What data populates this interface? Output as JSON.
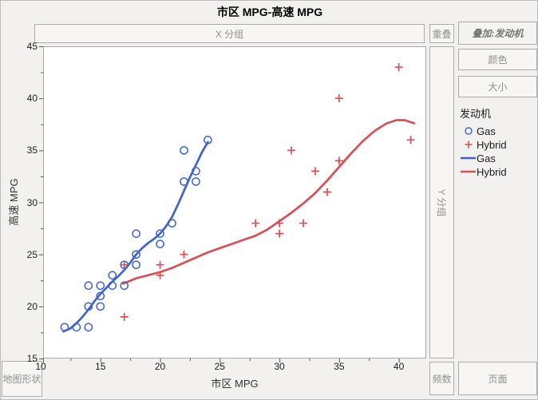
{
  "window": {
    "title": "市区 MPG-高速 MPG"
  },
  "drop_zones": {
    "x_group": "X 分组",
    "overlap": "重叠",
    "overlay": "叠加:发动机",
    "color": "颜色",
    "size": "大小",
    "y_group": "Y 分组",
    "map_shape": "地图形状",
    "freq": "频数",
    "page": "页面"
  },
  "legend": {
    "title": "发动机",
    "items": [
      {
        "label": "Gas",
        "marker": "circle",
        "color": "#3e63cf"
      },
      {
        "label": "Hybrid",
        "marker": "plus",
        "color": "#d94f56"
      },
      {
        "label": "Gas",
        "marker": "line",
        "color": "#3e63cf"
      },
      {
        "label": "Hybrid",
        "marker": "line",
        "color": "#d94f56"
      }
    ]
  },
  "colors": {
    "gas": "#3e63cf",
    "hybrid": "#d94f56",
    "plot_border": "#a8a8a8",
    "plot_bg": "#ffffff",
    "tick": "#555555"
  },
  "chart_data": {
    "type": "scatter",
    "title": "市区 MPG-高速 MPG",
    "xlabel": "市区 MPG",
    "ylabel": "高速 MPG",
    "xlim": [
      10.2,
      42.3
    ],
    "ylim": [
      15,
      45
    ],
    "x_ticks": [
      10,
      15,
      20,
      25,
      30,
      35,
      40
    ],
    "y_ticks": [
      15,
      20,
      25,
      30,
      35,
      40,
      45
    ],
    "minor_tick_step": 2.5,
    "grid": false,
    "legend_position": "right",
    "series": [
      {
        "name": "Gas",
        "marker": "circle",
        "color": "#3e63cf",
        "points": [
          [
            12,
            18
          ],
          [
            13,
            18
          ],
          [
            14,
            18
          ],
          [
            14,
            20
          ],
          [
            15,
            20
          ],
          [
            15,
            21
          ],
          [
            14,
            22
          ],
          [
            15,
            22
          ],
          [
            16,
            22
          ],
          [
            17,
            22
          ],
          [
            16,
            23
          ],
          [
            17,
            24
          ],
          [
            18,
            24
          ],
          [
            18,
            25
          ],
          [
            18,
            27
          ],
          [
            20,
            26
          ],
          [
            20,
            27
          ],
          [
            21,
            28
          ],
          [
            22,
            32
          ],
          [
            23,
            32
          ],
          [
            23,
            33
          ],
          [
            22,
            35
          ],
          [
            24,
            36
          ]
        ]
      },
      {
        "name": "Hybrid",
        "marker": "plus",
        "color": "#d94f56",
        "points": [
          [
            17,
            19
          ],
          [
            17,
            24
          ],
          [
            20,
            23
          ],
          [
            20,
            24
          ],
          [
            22,
            25
          ],
          [
            28,
            28
          ],
          [
            30,
            27
          ],
          [
            30,
            28
          ],
          [
            32,
            28
          ],
          [
            31,
            35
          ],
          [
            33,
            33
          ],
          [
            34,
            31
          ],
          [
            35,
            34
          ],
          [
            35,
            40
          ],
          [
            40,
            43
          ],
          [
            41,
            36
          ]
        ]
      }
    ],
    "smoothers": [
      {
        "name": "Gas",
        "color": "#3e63cf",
        "path": [
          [
            11.9,
            17.6
          ],
          [
            12.5,
            17.9
          ],
          [
            13,
            18.4
          ],
          [
            13.5,
            19.0
          ],
          [
            14,
            19.7
          ],
          [
            14.5,
            20.5
          ],
          [
            15,
            21.2
          ],
          [
            15.5,
            21.8
          ],
          [
            16,
            22.4
          ],
          [
            16.5,
            22.9
          ],
          [
            17,
            23.5
          ],
          [
            17.5,
            24.2
          ],
          [
            18,
            25.0
          ],
          [
            18.5,
            25.6
          ],
          [
            19,
            26.1
          ],
          [
            19.5,
            26.5
          ],
          [
            20,
            27.0
          ],
          [
            20.5,
            27.7
          ],
          [
            21,
            28.6
          ],
          [
            21.5,
            29.8
          ],
          [
            22,
            31.1
          ],
          [
            22.5,
            32.4
          ],
          [
            23,
            33.6
          ],
          [
            23.5,
            34.8
          ],
          [
            24,
            35.8
          ]
        ]
      },
      {
        "name": "Hybrid",
        "color": "#d94f56",
        "path": [
          [
            16.9,
            22.2
          ],
          [
            18,
            22.7
          ],
          [
            19,
            23.0
          ],
          [
            20,
            23.3
          ],
          [
            21,
            23.7
          ],
          [
            22,
            24.2
          ],
          [
            23,
            24.7
          ],
          [
            24,
            25.2
          ],
          [
            25,
            25.6
          ],
          [
            26,
            26.0
          ],
          [
            27,
            26.4
          ],
          [
            28,
            26.8
          ],
          [
            29,
            27.4
          ],
          [
            30,
            28.2
          ],
          [
            31,
            29.0
          ],
          [
            32,
            29.9
          ],
          [
            33,
            30.9
          ],
          [
            34,
            32.1
          ],
          [
            35,
            33.4
          ],
          [
            36,
            34.7
          ],
          [
            37,
            35.9
          ],
          [
            38,
            36.9
          ],
          [
            39,
            37.6
          ],
          [
            39.8,
            37.9
          ],
          [
            40.5,
            37.9
          ],
          [
            41.3,
            37.6
          ]
        ]
      }
    ]
  }
}
